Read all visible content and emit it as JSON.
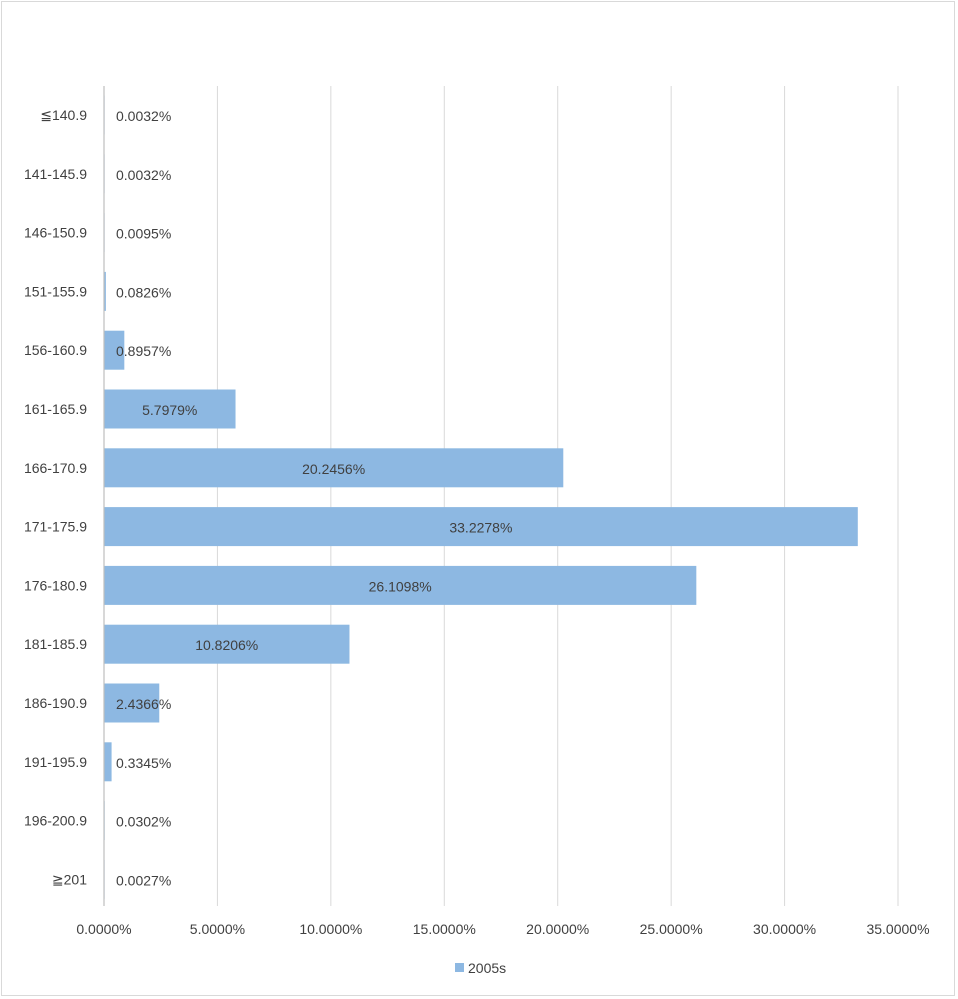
{
  "chart_data": {
    "type": "bar",
    "orientation": "horizontal",
    "title": "",
    "xlabel": "",
    "ylabel": "",
    "categories": [
      "≦140.9",
      "141-145.9",
      "146-150.9",
      "151-155.9",
      "156-160.9",
      "161-165.9",
      "166-170.9",
      "171-175.9",
      "176-180.9",
      "181-185.9",
      "186-190.9",
      "191-195.9",
      "196-200.9",
      "≧201"
    ],
    "series": [
      {
        "name": "2005s",
        "color": "#8db8e2",
        "values": [
          0.0032,
          0.0032,
          0.0095,
          0.0826,
          0.8957,
          5.7979,
          20.2456,
          33.2278,
          26.1098,
          10.8206,
          2.4366,
          0.3345,
          0.0302,
          0.0027
        ],
        "labels": [
          "0.0032%",
          "0.0032%",
          "0.0095%",
          "0.0826%",
          "0.8957%",
          "5.7979%",
          "20.2456%",
          "33.2278%",
          "26.1098%",
          "10.8206%",
          "2.4366%",
          "0.3345%",
          "0.0302%",
          "0.0027%"
        ]
      }
    ],
    "xlim": [
      0,
      35
    ],
    "xticks": [
      0,
      5,
      10,
      15,
      20,
      25,
      30,
      35
    ],
    "xtick_labels": [
      "0.0000%",
      "5.0000%",
      "10.0000%",
      "15.0000%",
      "20.0000%",
      "25.0000%",
      "30.0000%",
      "35.0000%"
    ],
    "grid": "vertical",
    "legend": "bottom-center"
  }
}
